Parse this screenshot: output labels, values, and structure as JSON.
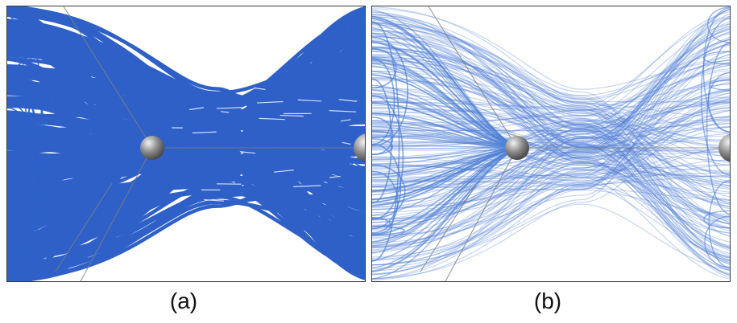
{
  "panels": [
    {
      "id": "a",
      "caption": "(a)",
      "bundle_color": "#2e60c8",
      "style": "dense"
    },
    {
      "id": "b",
      "caption": "(b)",
      "bundle_color": "#4f7fd6",
      "style": "translucent"
    }
  ],
  "node_color": "#8a8a8a"
}
